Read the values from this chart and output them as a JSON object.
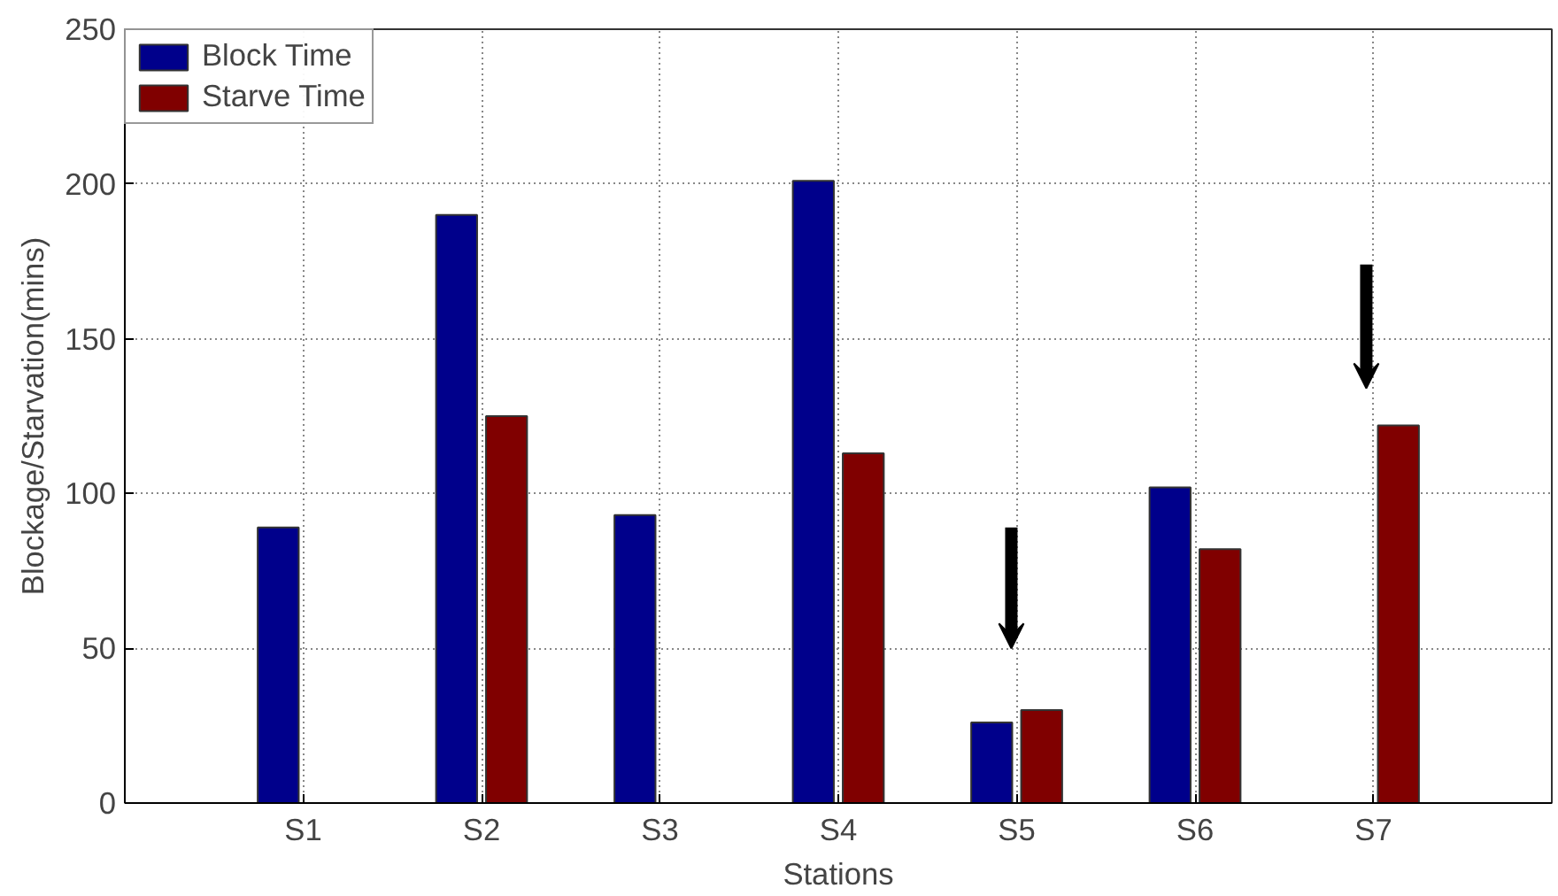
{
  "chart_data": {
    "type": "bar",
    "xlabel": "Stations",
    "ylabel": "Blockage/Starvation(mins)",
    "categories": [
      "S1",
      "S2",
      "S3",
      "S4",
      "S5",
      "S6",
      "S7"
    ],
    "series": [
      {
        "name": "Block Time",
        "color": "#00008b",
        "values": [
          89,
          190,
          93,
          201,
          26,
          102,
          null
        ]
      },
      {
        "name": "Starve Time",
        "color": "#800000",
        "values": [
          null,
          125,
          null,
          113,
          30,
          82,
          122
        ]
      }
    ],
    "ylim": [
      0,
      250
    ],
    "yticks": [
      0,
      50,
      100,
      150,
      200,
      250
    ],
    "grid": true,
    "legend": "top left"
  }
}
